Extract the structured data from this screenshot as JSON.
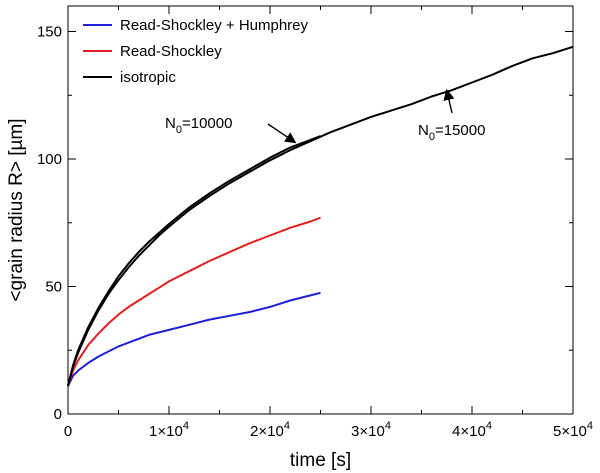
{
  "chart_data": {
    "type": "line",
    "xlabel": "time [s]",
    "ylabel": "<grain radius R> [µm]",
    "xlim": [
      0,
      50000
    ],
    "ylim": [
      0,
      160
    ],
    "x_ticks": [
      {
        "value": 0,
        "mant": "0",
        "exp": ""
      },
      {
        "value": 10000,
        "mant": "1×10",
        "exp": "4"
      },
      {
        "value": 20000,
        "mant": "2×10",
        "exp": "4"
      },
      {
        "value": 30000,
        "mant": "3×10",
        "exp": "4"
      },
      {
        "value": 40000,
        "mant": "4×10",
        "exp": "4"
      },
      {
        "value": 50000,
        "mant": "5×10",
        "exp": "4"
      }
    ],
    "y_ticks": [
      {
        "value": 0,
        "label": "0"
      },
      {
        "value": 50,
        "label": "50"
      },
      {
        "value": 100,
        "label": "100"
      },
      {
        "value": 150,
        "label": "150"
      }
    ],
    "legend": {
      "position": "top-left",
      "entries": [
        {
          "label": "Read-Shockley + Humphrey",
          "color": "#1f1fd6"
        },
        {
          "label": "Read-Shockley",
          "color": "#e02020"
        },
        {
          "label": "isotropic",
          "color": "#000000"
        }
      ]
    },
    "annotations": [
      {
        "base": "N",
        "sub": "0",
        "rest": "=10000",
        "target": [
          22500,
          106.5
        ]
      },
      {
        "base": "N",
        "sub": "0",
        "rest": "=15000",
        "target": [
          37500,
          127
        ]
      }
    ],
    "series": [
      {
        "name": "Read-Shockley + Humphrey",
        "color": "#1f1fd6",
        "x": [
          0,
          500,
          1000,
          2000,
          3000,
          4000,
          5000,
          6000,
          7000,
          8000,
          9000,
          10000,
          12000,
          14000,
          16000,
          18000,
          20000,
          22000,
          24000,
          25000
        ],
        "y": [
          11,
          15,
          17,
          20,
          22.5,
          24.5,
          26.5,
          28,
          29.5,
          31,
          32,
          33,
          35,
          37,
          38.5,
          40,
          42,
          44.5,
          46.5,
          47.5
        ]
      },
      {
        "name": "Read-Shockley",
        "color": "#e02020",
        "x": [
          0,
          500,
          1000,
          2000,
          3000,
          4000,
          5000,
          6000,
          7000,
          8000,
          9000,
          10000,
          12000,
          14000,
          16000,
          18000,
          20000,
          22000,
          24000,
          25000
        ],
        "y": [
          11,
          17,
          21,
          27,
          31.5,
          35.5,
          39,
          42,
          44.5,
          47,
          49.5,
          52,
          56,
          60,
          63.5,
          67,
          70,
          73,
          75.5,
          77
        ]
      },
      {
        "name": "isotropic",
        "color": "#000000",
        "x": [
          0,
          500,
          1000,
          2000,
          3000,
          4000,
          5000,
          6000,
          7000,
          8000,
          9000,
          10000,
          12000,
          14000,
          16000,
          18000,
          20000,
          22000,
          24000,
          25000
        ],
        "y": [
          11,
          19,
          25,
          34,
          41.5,
          48,
          54,
          59,
          63.5,
          67.5,
          71,
          74.5,
          81,
          86.5,
          91.5,
          96,
          100.5,
          104.5,
          107.5,
          109
        ]
      },
      {
        "name": "isotropic",
        "color": "#000000",
        "x": [
          0,
          500,
          1000,
          2000,
          3000,
          4000,
          5000,
          6000,
          7000,
          8000,
          9000,
          10000,
          12000,
          14000,
          16000,
          18000,
          20000,
          22000,
          24000,
          26000,
          28000,
          30000,
          32000,
          34000,
          36000,
          38000,
          40000,
          42000,
          44000,
          46000,
          48000,
          50000
        ],
        "y": [
          11,
          18.5,
          24,
          33,
          40.5,
          47,
          52.5,
          57.5,
          62,
          66,
          70,
          73.5,
          80,
          85.5,
          90.5,
          95,
          99.5,
          103.5,
          107,
          110.5,
          113.5,
          116.5,
          119,
          121.5,
          124.5,
          127,
          130,
          133,
          136.5,
          139.5,
          141.5,
          144
        ]
      }
    ]
  }
}
